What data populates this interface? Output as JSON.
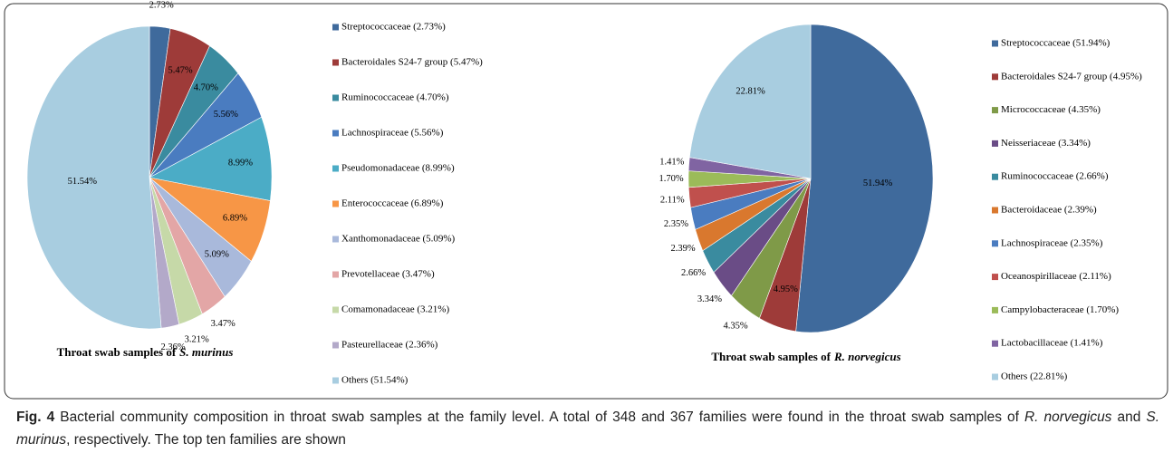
{
  "chart_data": [
    {
      "type": "pie",
      "title": "Throat swab samples of",
      "title_italic": "S. murinus",
      "categories": [
        "Streptococcaceae (2.73%)",
        "Bacteroidales S24-7 group (5.47%)",
        "Ruminococcaceae (4.70%)",
        "Lachnospiraceae (5.56%)",
        "Pseudomonadaceae (8.99%)",
        "Enterococcaceae (6.89%)",
        "Xanthomonadaceae (5.09%)",
        "Prevotellaceae (3.47%)",
        "Comamonadaceae (3.21%)",
        "Pasteurellaceae (2.36%)",
        "Others (51.54%)"
      ],
      "values": [
        2.73,
        5.47,
        4.7,
        5.56,
        8.99,
        6.89,
        5.09,
        3.47,
        3.21,
        2.36,
        51.54
      ],
      "value_labels": [
        "2.73%",
        "5.47%",
        "4.70%",
        "5.56%",
        "8.99%",
        "6.89%",
        "5.09%",
        "3.47%",
        "3.21%",
        "2.36%",
        "51.54%"
      ],
      "colors": [
        "#3f6a9c",
        "#9e3b39",
        "#3a8b9f",
        "#4a7cc0",
        "#4bacc6",
        "#f79646",
        "#a9b9db",
        "#e3a6a6",
        "#c6d9a8",
        "#b3a9c9",
        "#a8cde0"
      ]
    },
    {
      "type": "pie",
      "title": "Throat swab samples of",
      "title_italic": "R. norvegicus",
      "categories": [
        "Streptococcaceae (51.94%)",
        "Bacteroidales S24-7 group (4.95%)",
        "Micrococcaceae (4.35%)",
        "Neisseriaceae (3.34%)",
        "Ruminococcaceae (2.66%)",
        "Bacteroidaceae (2.39%)",
        "Lachnospiraceae (2.35%)",
        "Oceanospirillaceae (2.11%)",
        "Campylobacteraceae (1.70%)",
        "Lactobacillaceae (1.41%)",
        "Others (22.81%)"
      ],
      "values": [
        51.94,
        4.95,
        4.35,
        3.34,
        2.66,
        2.39,
        2.35,
        2.11,
        1.7,
        1.41,
        22.81
      ],
      "value_labels": [
        "51.94%",
        "4.95%",
        "4.35%",
        "3.34%",
        "2.66%",
        "2.39%",
        "2.35%",
        "2.11%",
        "1.70%",
        "1.41%",
        "22.81%"
      ],
      "colors": [
        "#3f6a9c",
        "#9e3b39",
        "#7f9a48",
        "#6a4c86",
        "#3a8b9f",
        "#d9782e",
        "#4a7cc0",
        "#c0504d",
        "#9bbb59",
        "#8064a2",
        "#a8cde0"
      ]
    }
  ],
  "caption": {
    "label": "Fig. 4",
    "parts": [
      " Bacterial community composition in throat swab samples at the family level. A total of 348 and 367 families were found in the throat swab samples of ",
      "R. norvegicus",
      " and ",
      "S. murinus",
      ", respectively. The top ten families are shown"
    ]
  }
}
